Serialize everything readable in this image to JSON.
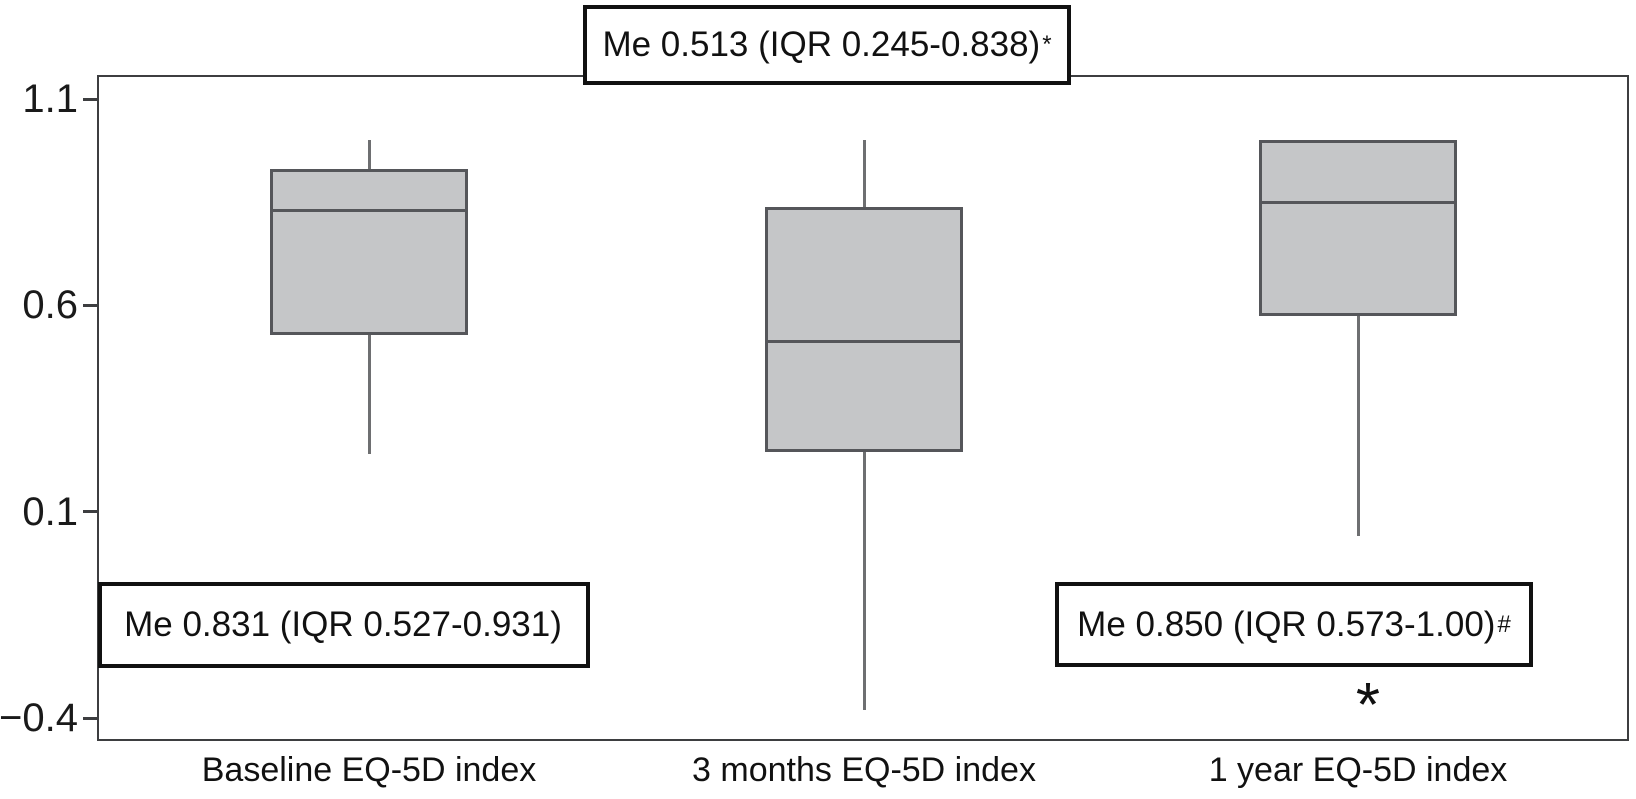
{
  "chart_data": {
    "type": "boxplot",
    "title": "",
    "xlabel": "",
    "ylabel": "",
    "grid": false,
    "legend": null,
    "categories": [
      "Baseline EQ-5D index",
      "3 months EQ-5D index",
      "1 year EQ-5D index"
    ],
    "y_axis": {
      "range": [
        -0.46,
        1.16
      ],
      "ticks": [
        {
          "value": 1.1,
          "label": "1.1"
        },
        {
          "value": 0.6,
          "label": "0.6"
        },
        {
          "value": 0.1,
          "label": "0.1"
        },
        {
          "value": -0.4,
          "label": "−0.4"
        }
      ]
    },
    "series": [
      {
        "name": "Baseline EQ-5D index",
        "median": 0.831,
        "q1": 0.527,
        "q3": 0.931,
        "whisker_low": 0.24,
        "whisker_high": 1.0
      },
      {
        "name": "3 months EQ-5D index",
        "median": 0.513,
        "q1": 0.245,
        "q3": 0.838,
        "whisker_low": -0.38,
        "whisker_high": 1.0
      },
      {
        "name": "1 year EQ-5D index",
        "median": 0.85,
        "q1": 0.573,
        "q3": 1.0,
        "whisker_low": 0.04,
        "whisker_high": 1.0
      }
    ],
    "annotations": {
      "top": {
        "text": "Me 0.513 (IQR 0.245-0.838)",
        "marker": "*"
      },
      "bottom_left": {
        "text": "Me 0.831 (IQR 0.527-0.931)",
        "marker": ""
      },
      "bottom_right": {
        "text": "Me 0.850 (IQR 0.573-1.00)",
        "marker": "#"
      }
    },
    "significance_marker": "*",
    "colors": {
      "box_fill": "#c5c6c8",
      "box_border": "#55565a",
      "whisker": "#6e6f71",
      "frame": "#3d3e40",
      "text": "#1a1a1a",
      "annotation_border": "#111111"
    }
  }
}
